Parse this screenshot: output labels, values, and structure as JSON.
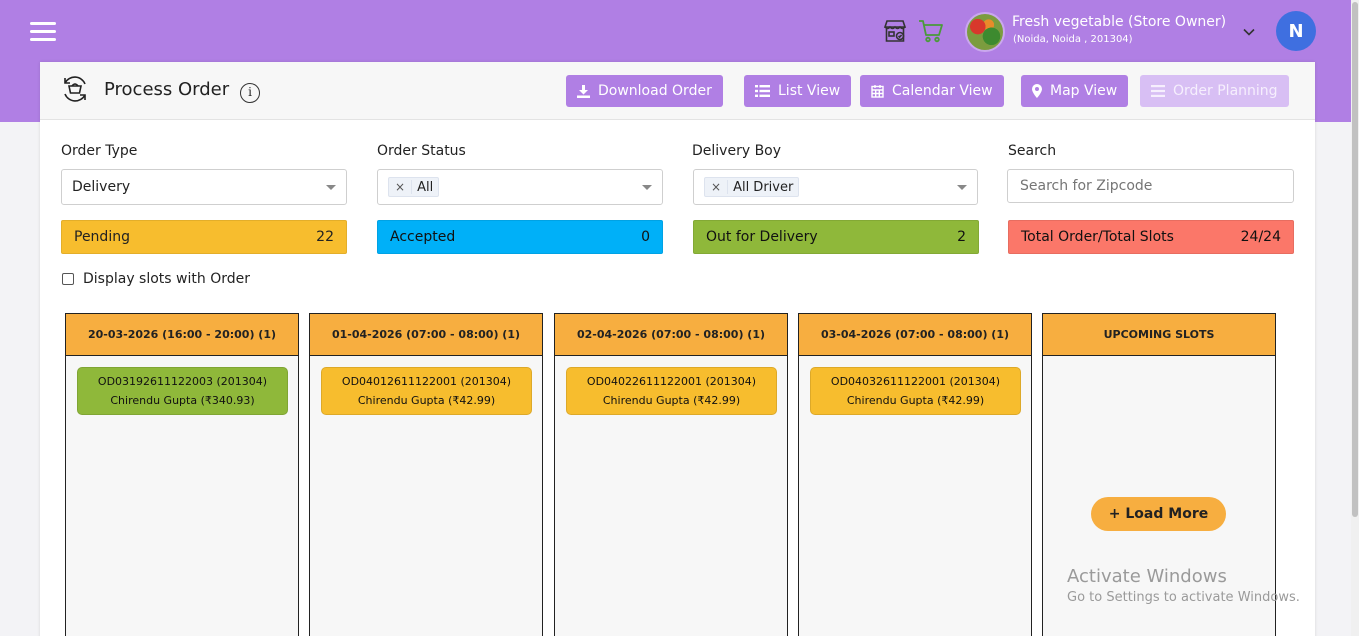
{
  "header": {
    "store_name": "Fresh vegetable (Store Owner)",
    "store_location": "(Noida, Noida , 201304)",
    "user_initial": "N"
  },
  "page": {
    "title": "Process Order",
    "info_glyph": "i"
  },
  "toolbar": {
    "download": "Download Order",
    "list": "List View",
    "calendar": "Calendar View",
    "map": "Map View",
    "planning": "Order Planning"
  },
  "filters": {
    "order_type": {
      "label": "Order Type",
      "value": "Delivery"
    },
    "order_status": {
      "label": "Order Status",
      "tag": "All",
      "remove": "×"
    },
    "delivery_boy": {
      "label": "Delivery Boy",
      "tag": "All Driver",
      "remove": "×"
    },
    "search": {
      "label": "Search",
      "placeholder": "Search for Zipcode"
    }
  },
  "stats": {
    "pending": {
      "label": "Pending",
      "value": "22"
    },
    "accepted": {
      "label": "Accepted",
      "value": "0"
    },
    "out_for_delivery": {
      "label": "Out for Delivery",
      "value": "2"
    },
    "total": {
      "label": "Total Order/Total Slots",
      "value": "24/24"
    }
  },
  "display_slots_label": "Display slots with Order",
  "slots": [
    {
      "title": "20-03-2026 (16:00 - 20:00) (1)",
      "orders": [
        {
          "id": "OD03192611122003 (201304)",
          "customer": "Chirendu Gupta (₹340.93)",
          "status_color": "#8fb83a"
        }
      ]
    },
    {
      "title": "01-04-2026 (07:00 - 08:00) (1)",
      "orders": [
        {
          "id": "OD04012611122001 (201304)",
          "customer": "Chirendu Gupta (₹42.99)",
          "status_color": "#f7bd2e"
        }
      ]
    },
    {
      "title": "02-04-2026 (07:00 - 08:00) (1)",
      "orders": [
        {
          "id": "OD04022611122001 (201304)",
          "customer": "Chirendu Gupta (₹42.99)",
          "status_color": "#f7bd2e"
        }
      ]
    },
    {
      "title": "03-04-2026 (07:00 - 08:00) (1)",
      "orders": [
        {
          "id": "OD04032611122001 (201304)",
          "customer": "Chirendu Gupta (₹42.99)",
          "status_color": "#f7bd2e"
        }
      ]
    },
    {
      "title": "UPCOMING SLOTS",
      "orders": []
    }
  ],
  "load_more": "+ Load More",
  "watermark": {
    "line1": "Activate Windows",
    "line2": "Go to Settings to activate Windows."
  },
  "colors": {
    "brand": "#b07fe4",
    "pending": "#f7bd2e",
    "accepted": "#00b0f8",
    "out_for_delivery": "#8fb83a",
    "total": "#fb7769",
    "slot_header": "#f7ae40"
  },
  "icons": [
    "menu-icon",
    "store-icon",
    "cart-icon",
    "chevron-down-icon",
    "process-order-icon",
    "info-icon",
    "download-icon",
    "list-icon",
    "calendar-icon",
    "map-pin-icon",
    "planning-icon"
  ]
}
